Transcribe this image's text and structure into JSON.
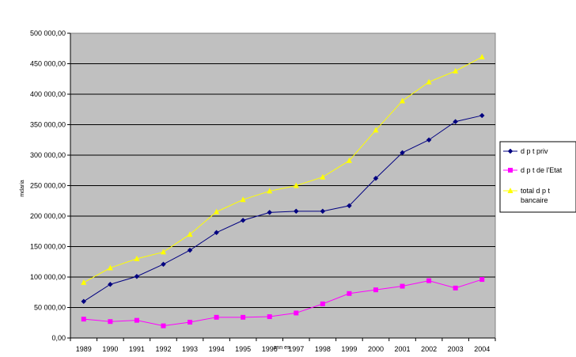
{
  "chart_data": {
    "type": "line",
    "title": "",
    "xlabel": "ann es",
    "ylabel": "mdaria",
    "x": [
      "1989",
      "1990",
      "1991",
      "1992",
      "1993",
      "1994",
      "1995",
      "1996",
      "1997",
      "1998",
      "1999",
      "2000",
      "2001",
      "2002",
      "2003",
      "2004"
    ],
    "ylim": [
      0,
      500000
    ],
    "yticks": [
      "0,00",
      "50 000,00",
      "100 000,00",
      "150 000,00",
      "200 000,00",
      "250 000,00",
      "300 000,00",
      "350 000,00",
      "400 000,00",
      "450 000,00",
      "500 000,00"
    ],
    "grid": true,
    "legend_position": "right",
    "plot_background": "#c0c0c0",
    "series": [
      {
        "name": "d p t priv",
        "color": "#000080",
        "marker": "diamond",
        "values": [
          60000,
          88000,
          101000,
          121000,
          144000,
          173000,
          193000,
          206000,
          208000,
          208000,
          217000,
          262000,
          304000,
          325000,
          355000,
          365000
        ]
      },
      {
        "name": "d p t de l'Etat",
        "color": "#ff00ff",
        "marker": "square",
        "values": [
          31000,
          27000,
          29000,
          20000,
          26000,
          34000,
          34000,
          35000,
          41000,
          56000,
          73000,
          79000,
          85000,
          94000,
          82000,
          96000
        ]
      },
      {
        "name_lines": [
          "total d p t",
          "bancaire"
        ],
        "color": "#ffff00",
        "marker": "triangle",
        "values": [
          91000,
          115000,
          130000,
          141000,
          170000,
          207000,
          227000,
          241000,
          250000,
          264000,
          291000,
          341000,
          389000,
          420000,
          438000,
          461000
        ]
      }
    ]
  }
}
